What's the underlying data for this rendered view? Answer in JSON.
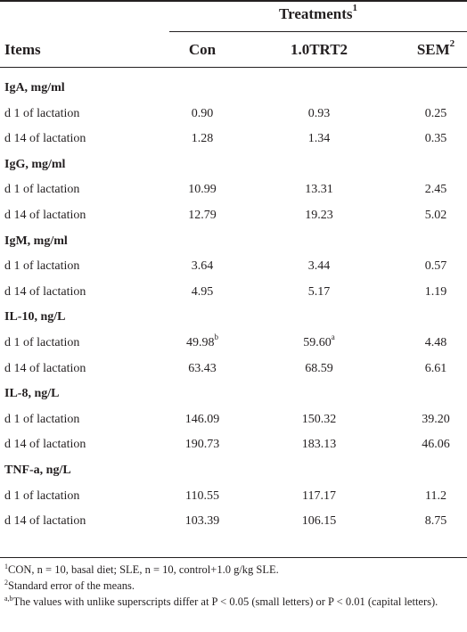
{
  "header": {
    "treatments": "Treatments",
    "treatments_sup": "1",
    "items": "Items",
    "con": "Con",
    "trt": "1.0TRT2",
    "sem": "SEM",
    "sem_sup": "2"
  },
  "rows": [
    {
      "label": "IgA, mg/ml",
      "section": true
    },
    {
      "label": "d 1 of lactation",
      "con": "0.90",
      "trt": "0.93",
      "sem": "0.25"
    },
    {
      "label": "d 14 of lactation",
      "con": "1.28",
      "trt": "1.34",
      "sem": "0.35"
    },
    {
      "label": "IgG, mg/ml",
      "section": true
    },
    {
      "label": "d 1 of lactation",
      "con": "10.99",
      "trt": "13.31",
      "sem": "2.45"
    },
    {
      "label": "d 14 of lactation",
      "con": "12.79",
      "trt": "19.23",
      "sem": "5.02"
    },
    {
      "label": "IgM, mg/ml",
      "section": true
    },
    {
      "label": "d 1 of lactation",
      "con": "3.64",
      "trt": "3.44",
      "sem": "0.57"
    },
    {
      "label": "d 14 of lactation",
      "con": "4.95",
      "trt": "5.17",
      "sem": "1.19"
    },
    {
      "label": "IL-10, ng/L",
      "section": true
    },
    {
      "label": "d 1 of lactation",
      "con": "49.98",
      "con_sup": "b",
      "trt": "59.60",
      "trt_sup": "a",
      "sem": "4.48"
    },
    {
      "label": "d 14 of lactation",
      "con": "63.43",
      "trt": "68.59",
      "sem": "6.61"
    },
    {
      "label": "IL-8, ng/L",
      "section": true
    },
    {
      "label": "d 1 of lactation",
      "con": "146.09",
      "trt": "150.32",
      "sem": "39.20"
    },
    {
      "label": "d 14 of lactation",
      "con": "190.73",
      "trt": "183.13",
      "sem": "46.06"
    },
    {
      "label": "TNF-a, ng/L",
      "section": true
    },
    {
      "label": "d 1 of lactation",
      "con": "110.55",
      "trt": "117.17",
      "sem": "11.2"
    },
    {
      "label": "d 14 of lactation",
      "con": "103.39",
      "trt": "106.15",
      "sem": "8.75"
    }
  ],
  "footnotes": [
    {
      "sup": "1",
      "text": "CON, n = 10, basal diet; SLE, n = 10, control+1.0 g/kg SLE."
    },
    {
      "sup": "2",
      "text": "Standard error of the means."
    },
    {
      "sup": "a,b",
      "text": "The values with unlike superscripts differ at P < 0.05 (small letters) or P < 0.01 (capital letters)."
    }
  ]
}
